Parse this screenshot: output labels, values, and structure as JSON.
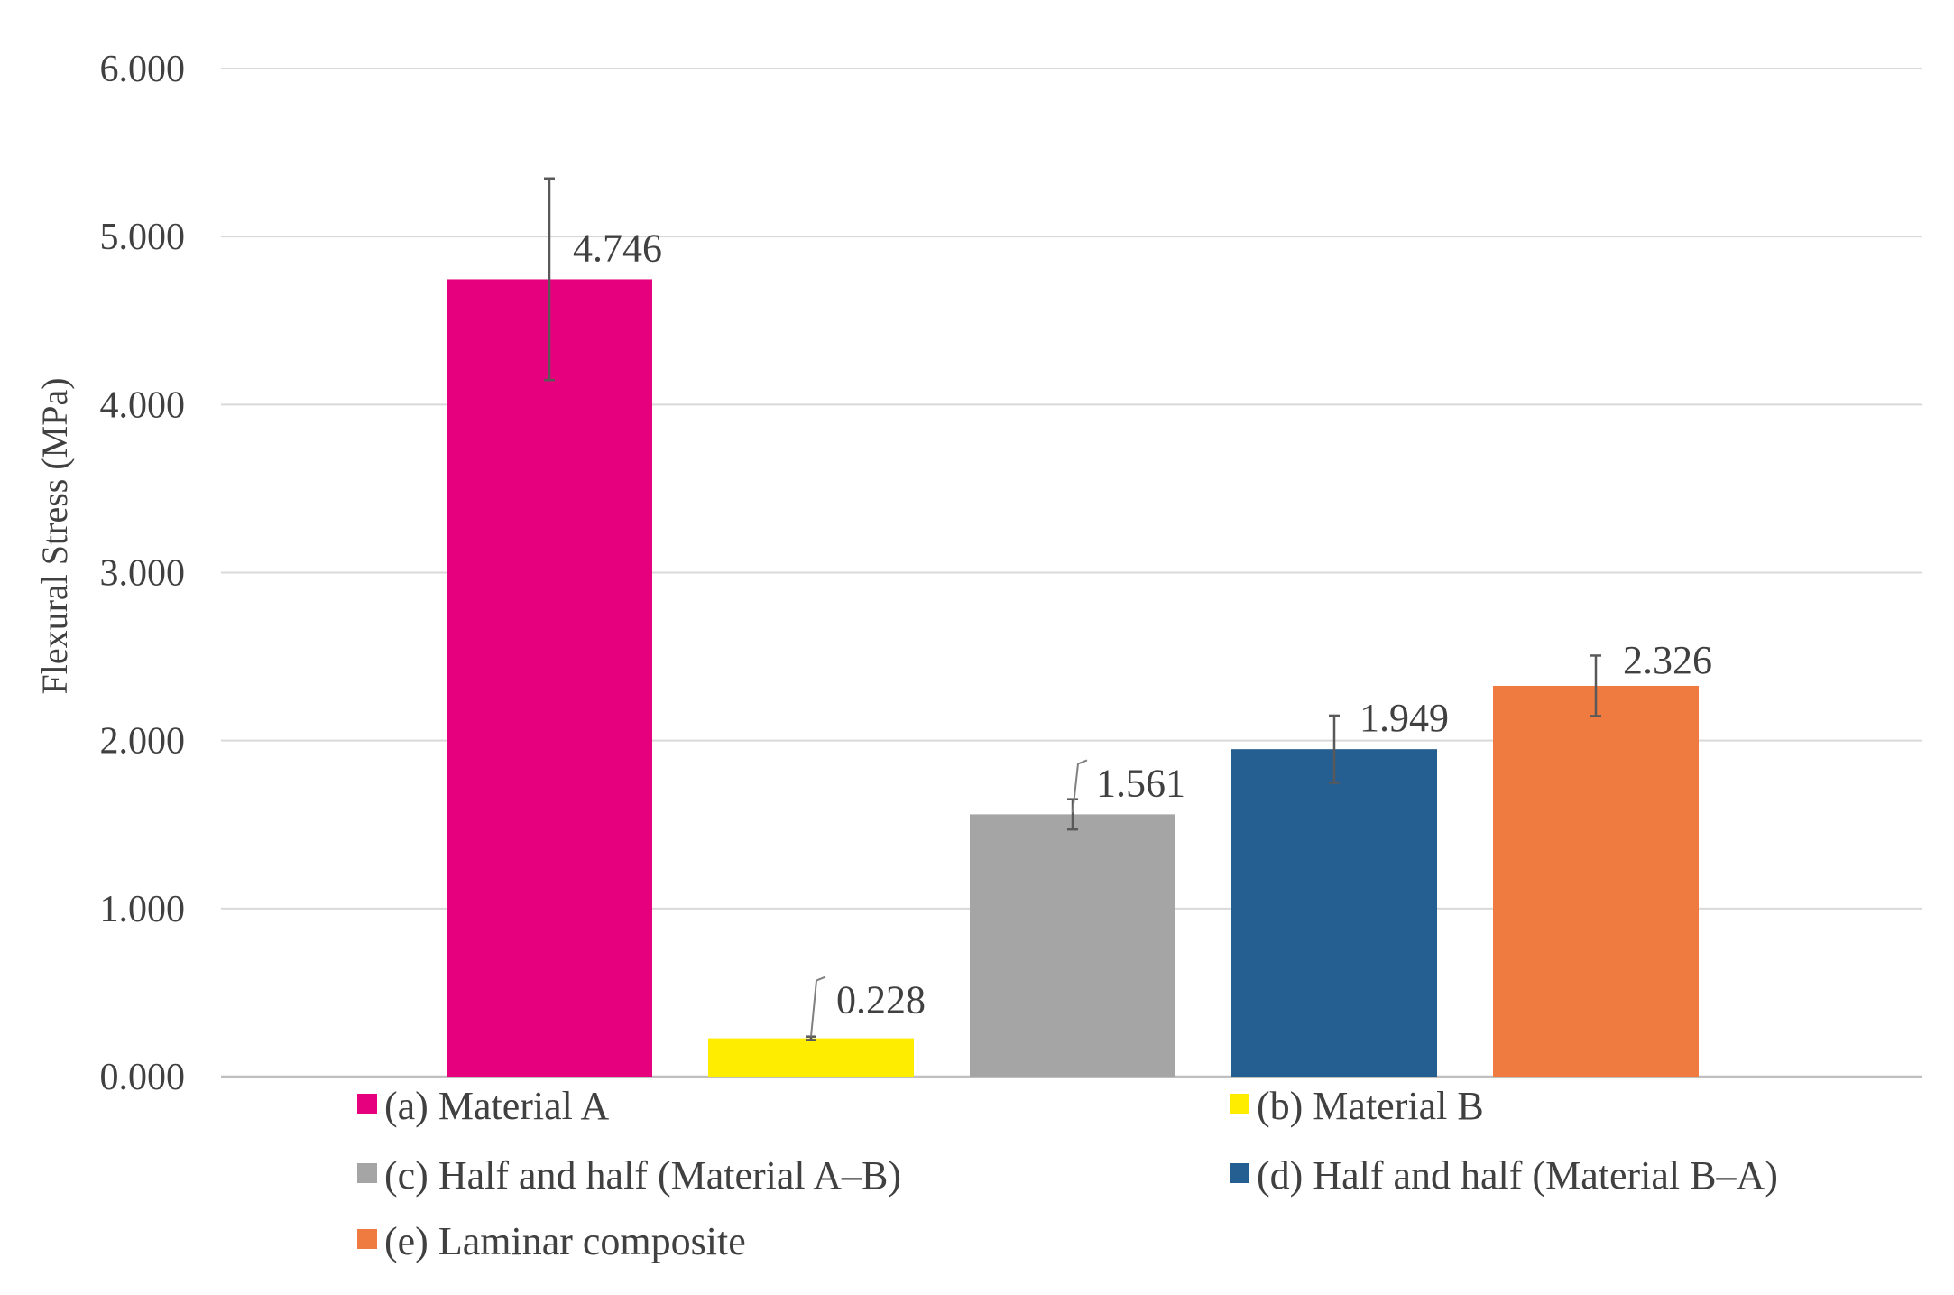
{
  "chart_data": {
    "type": "bar",
    "title": "",
    "xlabel": "",
    "ylabel": "Flexural Stress (MPa)",
    "ylim": [
      0,
      6
    ],
    "yticks": [
      "0.000",
      "1.000",
      "2.000",
      "3.000",
      "4.000",
      "5.000",
      "6.000"
    ],
    "grid": true,
    "legend_position": "bottom",
    "categories": [
      "(a) Material A",
      "(b) Material B",
      "(c) Half and half (Material A–B)",
      "(d) Half and half (Material B–A)",
      "(e) Laminar composite"
    ],
    "values": [
      4.746,
      0.228,
      1.561,
      1.949,
      2.326
    ],
    "value_labels": [
      "4.746",
      "0.228",
      "1.561",
      "1.949",
      "2.326"
    ],
    "error": [
      0.6,
      0.01,
      0.09,
      0.2,
      0.18
    ],
    "colors": [
      "#E6007E",
      "#FFED00",
      "#A5A5A5",
      "#255E91",
      "#EF7B41"
    ]
  }
}
